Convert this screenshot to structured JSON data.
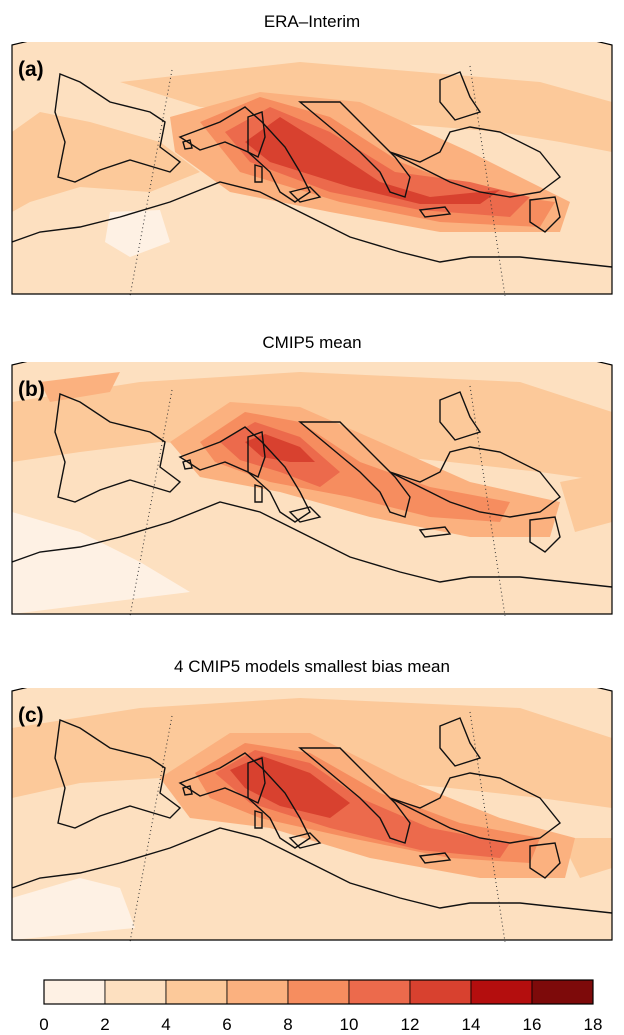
{
  "panels": [
    {
      "title": "ERA–Interim",
      "label": "(a)"
    },
    {
      "title": "CMIP5 mean",
      "label": "(b)"
    },
    {
      "title": "4 CMIP5 models smallest bias mean",
      "label": "(c)"
    }
  ],
  "colorbar": {
    "ticks": [
      "0",
      "2",
      "4",
      "6",
      "8",
      "10",
      "12",
      "14",
      "16",
      "18"
    ],
    "colors": [
      "#fef1e4",
      "#fde0c0",
      "#fcc99a",
      "#fbb17f",
      "#f68d5f",
      "#ec6a4c",
      "#d8412f",
      "#b40e0e",
      "#7d0a0a"
    ]
  }
}
